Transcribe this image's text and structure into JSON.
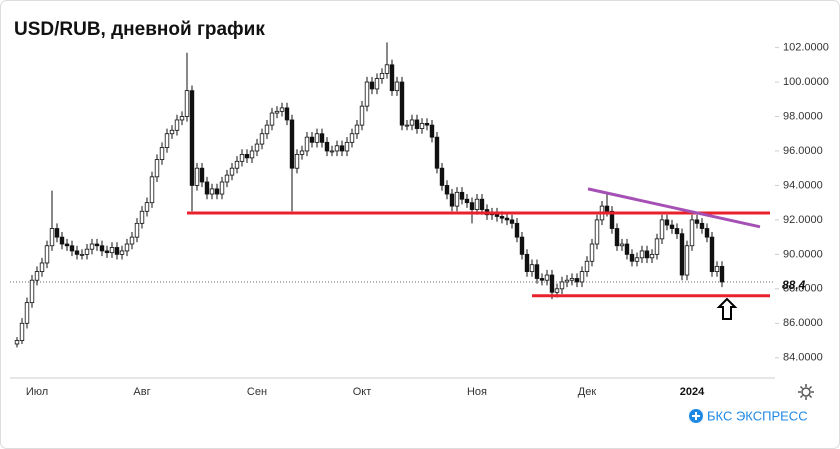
{
  "chart_data": {
    "type": "candlestick",
    "title": "USD/RUB, дневной график",
    "brand": "БКС ЭКСПРЕСС",
    "candles": [
      [
        84.8,
        85.2,
        84.6,
        85.0
      ],
      [
        85.0,
        86.3,
        84.8,
        86.0
      ],
      [
        86.0,
        87.5,
        85.7,
        87.2
      ],
      [
        87.2,
        88.8,
        86.9,
        88.5
      ],
      [
        88.5,
        89.3,
        88.2,
        89.0
      ],
      [
        89.0,
        89.8,
        88.7,
        89.5
      ],
      [
        89.5,
        90.8,
        89.2,
        90.5
      ],
      [
        90.5,
        93.7,
        90.2,
        91.5
      ],
      [
        91.5,
        91.8,
        90.7,
        91.0
      ],
      [
        91.0,
        91.3,
        90.3,
        90.6
      ],
      [
        90.6,
        90.9,
        90.2,
        90.5
      ],
      [
        90.5,
        90.8,
        89.9,
        90.2
      ],
      [
        90.2,
        90.5,
        89.7,
        90.0
      ],
      [
        90.0,
        90.3,
        89.7,
        90.0
      ],
      [
        90.0,
        90.6,
        89.7,
        90.3
      ],
      [
        90.3,
        90.9,
        90.0,
        90.6
      ],
      [
        90.6,
        90.9,
        90.2,
        90.5
      ],
      [
        90.5,
        90.8,
        89.9,
        90.2
      ],
      [
        90.2,
        90.5,
        89.8,
        90.1
      ],
      [
        90.1,
        90.7,
        89.8,
        90.4
      ],
      [
        90.4,
        90.7,
        89.7,
        90.0
      ],
      [
        90.0,
        90.5,
        89.7,
        90.2
      ],
      [
        90.2,
        90.9,
        89.9,
        90.6
      ],
      [
        90.6,
        91.3,
        90.3,
        91.0
      ],
      [
        91.0,
        92.1,
        90.7,
        91.8
      ],
      [
        91.8,
        92.8,
        91.5,
        92.5
      ],
      [
        92.5,
        93.3,
        92.2,
        93.0
      ],
      [
        93.0,
        94.8,
        92.7,
        94.5
      ],
      [
        94.5,
        95.8,
        94.2,
        95.5
      ],
      [
        95.5,
        96.5,
        95.2,
        96.2
      ],
      [
        96.2,
        97.3,
        95.9,
        97.0
      ],
      [
        97.0,
        97.5,
        96.7,
        97.2
      ],
      [
        97.2,
        98.1,
        96.9,
        97.8
      ],
      [
        97.8,
        98.3,
        97.5,
        98.0
      ],
      [
        98.0,
        101.7,
        97.7,
        99.5
      ],
      [
        99.5,
        99.8,
        92.5,
        94.0
      ],
      [
        94.0,
        95.3,
        93.7,
        95.0
      ],
      [
        95.0,
        95.3,
        93.9,
        94.2
      ],
      [
        94.2,
        94.5,
        93.2,
        93.5
      ],
      [
        93.5,
        94.1,
        93.2,
        93.8
      ],
      [
        93.8,
        94.1,
        93.2,
        93.5
      ],
      [
        93.5,
        94.5,
        93.2,
        94.2
      ],
      [
        94.2,
        94.9,
        93.9,
        94.6
      ],
      [
        94.6,
        95.3,
        94.3,
        95.0
      ],
      [
        95.0,
        95.7,
        94.7,
        95.4
      ],
      [
        95.4,
        96.1,
        95.1,
        95.8
      ],
      [
        95.8,
        96.1,
        95.3,
        95.6
      ],
      [
        95.6,
        96.3,
        95.3,
        96.0
      ],
      [
        96.0,
        96.7,
        95.7,
        96.4
      ],
      [
        96.4,
        97.3,
        96.1,
        97.0
      ],
      [
        97.0,
        97.8,
        96.7,
        97.5
      ],
      [
        97.5,
        98.5,
        97.2,
        98.2
      ],
      [
        98.2,
        98.6,
        97.9,
        98.3
      ],
      [
        98.3,
        98.8,
        98.0,
        98.5
      ],
      [
        98.5,
        98.8,
        97.5,
        97.8
      ],
      [
        97.8,
        98.1,
        92.5,
        95.0
      ],
      [
        95.0,
        96.1,
        94.7,
        95.8
      ],
      [
        95.8,
        96.3,
        95.5,
        96.0
      ],
      [
        96.0,
        97.1,
        95.7,
        96.8
      ],
      [
        96.8,
        97.1,
        96.2,
        96.5
      ],
      [
        96.5,
        97.3,
        96.2,
        97.0
      ],
      [
        97.0,
        97.3,
        96.2,
        96.5
      ],
      [
        96.5,
        96.8,
        95.7,
        96.0
      ],
      [
        96.0,
        96.3,
        95.7,
        96.0
      ],
      [
        96.0,
        96.6,
        95.7,
        96.3
      ],
      [
        96.3,
        96.6,
        95.7,
        96.0
      ],
      [
        96.0,
        96.8,
        95.7,
        96.5
      ],
      [
        96.5,
        97.3,
        96.2,
        97.0
      ],
      [
        97.0,
        97.8,
        96.7,
        97.5
      ],
      [
        97.5,
        98.9,
        97.2,
        98.6
      ],
      [
        98.6,
        100.3,
        98.3,
        100.0
      ],
      [
        100.0,
        100.3,
        99.3,
        99.6
      ],
      [
        99.6,
        100.5,
        99.3,
        100.2
      ],
      [
        100.2,
        100.8,
        99.9,
        100.5
      ],
      [
        100.5,
        102.3,
        100.2,
        101.0
      ],
      [
        101.0,
        101.3,
        99.2,
        99.5
      ],
      [
        99.5,
        100.3,
        99.2,
        100.0
      ],
      [
        100.0,
        100.3,
        97.2,
        97.5
      ],
      [
        97.5,
        97.8,
        97.2,
        97.5
      ],
      [
        97.5,
        98.1,
        97.2,
        97.8
      ],
      [
        97.8,
        98.1,
        97.0,
        97.3
      ],
      [
        97.3,
        97.9,
        97.0,
        97.6
      ],
      [
        97.6,
        97.9,
        97.2,
        97.5
      ],
      [
        97.5,
        97.8,
        96.5,
        96.8
      ],
      [
        96.8,
        97.1,
        94.7,
        95.0
      ],
      [
        95.0,
        95.3,
        93.7,
        94.0
      ],
      [
        94.0,
        94.3,
        93.2,
        93.5
      ],
      [
        93.5,
        93.8,
        92.5,
        92.8
      ],
      [
        92.8,
        93.9,
        92.5,
        93.6
      ],
      [
        93.6,
        93.9,
        92.9,
        93.2
      ],
      [
        93.2,
        93.5,
        92.7,
        93.0
      ],
      [
        93.0,
        93.3,
        91.8,
        92.6
      ],
      [
        92.6,
        93.5,
        92.3,
        93.2
      ],
      [
        93.2,
        93.5,
        92.3,
        92.6
      ],
      [
        92.6,
        92.9,
        92.0,
        92.3
      ],
      [
        92.3,
        92.7,
        92.0,
        92.4
      ],
      [
        92.4,
        92.7,
        91.9,
        92.2
      ],
      [
        92.2,
        92.5,
        91.8,
        92.1
      ],
      [
        92.1,
        92.4,
        91.7,
        92.0
      ],
      [
        92.0,
        92.3,
        91.5,
        91.8
      ],
      [
        91.8,
        92.1,
        90.7,
        91.0
      ],
      [
        91.0,
        91.3,
        89.7,
        90.0
      ],
      [
        90.0,
        90.3,
        88.7,
        89.0
      ],
      [
        89.0,
        89.7,
        88.7,
        89.4
      ],
      [
        89.4,
        89.7,
        88.3,
        88.6
      ],
      [
        88.6,
        88.9,
        88.2,
        88.5
      ],
      [
        88.5,
        89.1,
        88.2,
        88.8
      ],
      [
        88.8,
        89.1,
        87.4,
        87.8
      ],
      [
        87.8,
        88.3,
        87.5,
        88.0
      ],
      [
        88.0,
        88.7,
        87.7,
        88.4
      ],
      [
        88.4,
        88.8,
        88.1,
        88.5
      ],
      [
        88.5,
        88.9,
        88.2,
        88.6
      ],
      [
        88.6,
        88.9,
        88.1,
        88.4
      ],
      [
        88.4,
        89.3,
        88.1,
        89.0
      ],
      [
        89.0,
        89.9,
        88.7,
        89.6
      ],
      [
        89.6,
        90.9,
        89.3,
        90.6
      ],
      [
        90.6,
        92.3,
        90.3,
        92.0
      ],
      [
        92.0,
        93.1,
        91.7,
        92.8
      ],
      [
        92.8,
        93.5,
        92.2,
        92.5
      ],
      [
        92.5,
        92.8,
        91.2,
        91.5
      ],
      [
        91.5,
        91.8,
        90.2,
        90.5
      ],
      [
        90.5,
        90.9,
        90.2,
        90.6
      ],
      [
        90.6,
        90.9,
        89.7,
        90.0
      ],
      [
        90.0,
        90.3,
        89.3,
        89.6
      ],
      [
        89.6,
        90.1,
        89.3,
        89.8
      ],
      [
        89.8,
        90.5,
        89.5,
        90.2
      ],
      [
        90.2,
        90.5,
        89.5,
        89.8
      ],
      [
        89.8,
        90.3,
        89.5,
        90.0
      ],
      [
        90.0,
        91.2,
        89.7,
        90.9
      ],
      [
        90.9,
        92.3,
        90.6,
        92.0
      ],
      [
        92.0,
        92.3,
        91.4,
        91.7
      ],
      [
        91.7,
        92.0,
        91.2,
        91.5
      ],
      [
        91.5,
        91.8,
        90.9,
        91.2
      ],
      [
        91.2,
        91.5,
        88.5,
        88.8
      ],
      [
        88.8,
        90.8,
        88.5,
        90.5
      ],
      [
        90.5,
        92.3,
        90.2,
        92.0
      ],
      [
        92.0,
        92.3,
        91.5,
        91.8
      ],
      [
        91.8,
        92.1,
        91.2,
        91.5
      ],
      [
        91.5,
        91.8,
        90.7,
        91.0
      ],
      [
        91.0,
        91.3,
        88.7,
        89.0
      ],
      [
        89.0,
        89.6,
        88.7,
        89.3
      ],
      [
        89.3,
        89.6,
        88.1,
        88.4
      ]
    ],
    "xlabels": [
      {
        "index": 4,
        "label": "Июл"
      },
      {
        "index": 25,
        "label": "Авг"
      },
      {
        "index": 48,
        "label": "Сен"
      },
      {
        "index": 69,
        "label": "Окт"
      },
      {
        "index": 92,
        "label": "Ноя"
      },
      {
        "index": 114,
        "label": "Дек"
      },
      {
        "index": 135,
        "label": "2024",
        "bold": true
      }
    ],
    "ylim": [
      83,
      103.6
    ],
    "yticks": [
      {
        "value": 84,
        "label": "84.0000"
      },
      {
        "value": 86,
        "label": "86.0000"
      },
      {
        "value": 88,
        "label": "88.0000"
      },
      {
        "value": 90,
        "label": "90.0000"
      },
      {
        "value": 92,
        "label": "92.0000"
      },
      {
        "value": 94,
        "label": "94.0000"
      },
      {
        "value": 96,
        "label": "96.0000"
      },
      {
        "value": 98,
        "label": "98.0000"
      },
      {
        "value": 100,
        "label": "100.0000"
      },
      {
        "value": 102,
        "label": "102.0000"
      }
    ],
    "last_value": 88.4,
    "last_label": "88,4",
    "lines": [
      {
        "color": "#e8212b",
        "from": [
          34,
          92.4
        ],
        "to": [
          150.6,
          92.4
        ]
      },
      {
        "color": "#e8212b",
        "from": [
          103,
          87.6
        ],
        "to": [
          150.6,
          87.6
        ]
      },
      {
        "color": "#a550b5",
        "from": [
          114.2,
          93.8
        ],
        "to": [
          148.6,
          91.6
        ]
      }
    ],
    "up_color": "#ffffff",
    "down_color": "#111111"
  }
}
